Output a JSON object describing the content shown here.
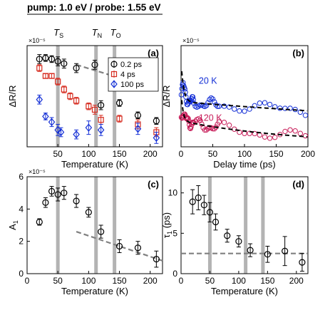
{
  "figure": {
    "header": "pump: 1.0 eV / probe: 1.55 eV",
    "temperature_markers": [
      {
        "label": "T",
        "sub": "S",
        "x": 50
      },
      {
        "label": "T",
        "sub": "N",
        "x": 112
      },
      {
        "label": "T",
        "sub": "O",
        "x": 142
      }
    ]
  },
  "chart_data": [
    {
      "panel": "(a)",
      "type": "scatter",
      "xlabel": "Temperature (K)",
      "ylabel": "ΔR/R",
      "exponent": "×10⁻⁵",
      "xlim": [
        0,
        220
      ],
      "xticks": [
        50,
        100,
        150,
        200
      ],
      "ylim": [
        0,
        9
      ],
      "legend": "top-right",
      "series": [
        {
          "name": "0.2 ps",
          "color": "#000000",
          "marker": "circle",
          "x": [
            20,
            30,
            40,
            50,
            60,
            80,
            110,
            120,
            150,
            180,
            210
          ],
          "y": [
            7.8,
            7.9,
            7.8,
            7.6,
            7.4,
            7.0,
            7.3,
            3.7,
            3.9,
            2.8,
            2.3
          ],
          "err": [
            0.4,
            0.3,
            0.3,
            0.4,
            0.4,
            0.4,
            0.4,
            0.4,
            0.3,
            0.3,
            0.3
          ]
        },
        {
          "name": "4 ps",
          "color": "#d62a1e",
          "marker": "square",
          "x": [
            20,
            30,
            40,
            50,
            60,
            70,
            80,
            100,
            110,
            120,
            150,
            180,
            210
          ],
          "y": [
            7.0,
            6.3,
            6.3,
            5.8,
            5.1,
            4.5,
            4.1,
            3.6,
            3.3,
            2.4,
            2.5,
            2.0,
            1.3
          ],
          "err": [
            0.3,
            0.2,
            0.2,
            0.3,
            0.3,
            0.3,
            0.3,
            0.3,
            0.4,
            0.4,
            0.3,
            0.4,
            0.4
          ]
        },
        {
          "name": "100 ps",
          "color": "#1530d6",
          "marker": "diamond",
          "x": [
            20,
            30,
            40,
            50,
            55,
            80,
            100,
            120,
            180,
            210
          ],
          "y": [
            4.2,
            2.7,
            2.2,
            1.5,
            1.3,
            1.1,
            1.7,
            1.5,
            1.6,
            0.8
          ],
          "err": [
            0.4,
            0.3,
            0.4,
            0.5,
            0.4,
            0.4,
            0.6,
            0.5,
            0.5,
            0.5
          ]
        }
      ],
      "fit_line": {
        "color": "#808080",
        "x": [
          80,
          140
        ],
        "y": [
          7.3,
          6.3
        ]
      }
    },
    {
      "panel": "(b)",
      "type": "scatter",
      "xlabel": "Delay time (ps)",
      "ylabel": "ΔR/R",
      "exponent": "×10⁻⁵",
      "xlim": [
        0,
        200
      ],
      "xticks": [
        0,
        50,
        100,
        150,
        200
      ],
      "ylim": [
        0,
        9
      ],
      "series": [
        {
          "name": "20 K",
          "color": "#1530d6",
          "label_pos": [
            28,
            5.6
          ],
          "amp_fast": 3.5,
          "tau_fast": 4,
          "amp_slow": 4.0,
          "tau_slow": 900,
          "base": 0.0
        },
        {
          "name": "120 K",
          "color": "#c81e5a",
          "label_pos": [
            28,
            2.3
          ],
          "amp_fast": 2.6,
          "tau_fast": 3,
          "amp_slow": 2.1,
          "tau_slow": 180,
          "base": 0.2
        }
      ]
    },
    {
      "panel": "(c)",
      "type": "scatter",
      "xlabel": "Temperature (K)",
      "ylabel": "A",
      "ylabel_sub": "1",
      "exponent": "×10⁻⁵",
      "xlim": [
        0,
        220
      ],
      "xticks": [
        0,
        50,
        100,
        150,
        200
      ],
      "ylim": [
        0,
        6
      ],
      "yticks": [
        0,
        2,
        4,
        6
      ],
      "series": [
        {
          "name": "A1",
          "color": "#000000",
          "marker": "circle",
          "x": [
            20,
            30,
            40,
            50,
            60,
            80,
            100,
            120,
            150,
            180,
            210
          ],
          "y": [
            3.2,
            4.4,
            5.1,
            4.9,
            5.0,
            4.5,
            3.8,
            2.6,
            1.7,
            1.6,
            0.9
          ],
          "err": [
            0.2,
            0.3,
            0.3,
            0.4,
            0.4,
            0.4,
            0.3,
            0.4,
            0.4,
            0.4,
            0.5
          ]
        }
      ],
      "fit_line": {
        "color": "#808080",
        "x": [
          80,
          220
        ],
        "y": [
          2.6,
          0.8
        ]
      }
    },
    {
      "panel": "(d)",
      "type": "scatter",
      "xlabel": "Temperature (K)",
      "ylabel": "τ",
      "ylabel_sub": "1",
      "ylabel_unit": " (ps)",
      "xlim": [
        0,
        220
      ],
      "xticks": [
        0,
        50,
        100,
        150,
        200
      ],
      "ylim": [
        0,
        12
      ],
      "yticks": [
        0,
        5,
        10
      ],
      "series": [
        {
          "name": "tau1",
          "color": "#000000",
          "marker": "circle",
          "x": [
            20,
            30,
            40,
            50,
            60,
            80,
            100,
            120,
            150,
            180,
            210
          ],
          "y": [
            8.9,
            9.4,
            8.5,
            7.6,
            6.4,
            4.7,
            4.0,
            2.9,
            2.4,
            2.8,
            1.4
          ],
          "err": [
            1.5,
            1.5,
            1.2,
            1.2,
            1.0,
            0.8,
            0.7,
            0.8,
            1.0,
            1.8,
            1.1
          ]
        }
      ],
      "fit_line": {
        "color": "#808080",
        "x": [
          0,
          220
        ],
        "y": [
          2.5,
          2.5
        ]
      }
    }
  ]
}
